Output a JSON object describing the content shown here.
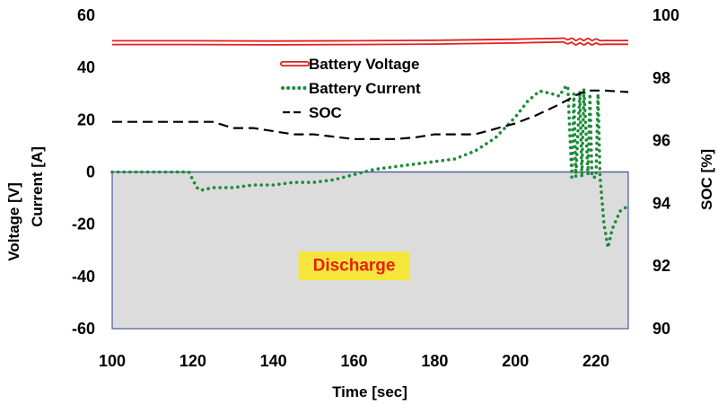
{
  "chart_data": {
    "type": "line",
    "xlabel": "Time [sec]",
    "ylabel_left": [
      "Voltage [V]",
      "Current [A]"
    ],
    "ylabel_right": "SOC [%]",
    "xlim": [
      100,
      228
    ],
    "ylim_left": [
      -60,
      60
    ],
    "ylim_right": [
      90,
      100
    ],
    "x_ticks": [
      "100",
      "120",
      "140",
      "160",
      "180",
      "200",
      "220"
    ],
    "y_left_ticks": [
      "-60",
      "-40",
      "-20",
      "0",
      "20",
      "40",
      "60"
    ],
    "y_right_ticks": [
      "90",
      "92",
      "94",
      "96",
      "98",
      "100"
    ],
    "grid": false,
    "legend_position": "top-center",
    "annotation": {
      "text": "Discharge",
      "x": 160,
      "y": -36,
      "color": "#e8200c",
      "background": "#f5e63c"
    },
    "discharge_region": {
      "y_from": 0,
      "y_to": -60,
      "color": "#dcdcdc"
    },
    "series": [
      {
        "name": "Battery Voltage",
        "axis": "left",
        "style": "double-line",
        "color": "#e02020",
        "x": [
          100,
          120,
          140,
          160,
          180,
          200,
          205,
          210,
          212,
          213,
          214,
          215,
          216,
          217,
          218,
          219,
          220,
          221,
          222,
          228
        ],
        "y": [
          49.5,
          49.5,
          49.4,
          49.5,
          49.7,
          50.1,
          50.3,
          50.4,
          50.5,
          49.8,
          50.5,
          49.4,
          50.3,
          49.4,
          50.4,
          49.4,
          50.2,
          49.5,
          49.6,
          49.6
        ]
      },
      {
        "name": "Battery Current",
        "axis": "left",
        "style": "dotted",
        "color": "#1e8c3a",
        "x": [
          100,
          105,
          110,
          115,
          119,
          120,
          121,
          122,
          125,
          130,
          135,
          140,
          145,
          150,
          155,
          160,
          165,
          170,
          175,
          180,
          185,
          190,
          195,
          200,
          203,
          206,
          209,
          211,
          212,
          213,
          214,
          214.5,
          215,
          216,
          216.5,
          217,
          218,
          218.5,
          219,
          220,
          220.5,
          221,
          222,
          223,
          224,
          226,
          228
        ],
        "y": [
          0,
          0,
          0,
          0,
          0,
          -3,
          -6,
          -7,
          -6,
          -6,
          -5,
          -5,
          -4,
          -4,
          -3,
          -1,
          1,
          2,
          3,
          4,
          5,
          8,
          13,
          21,
          27,
          31,
          30,
          29,
          32,
          33,
          -2,
          30,
          -2,
          31,
          -2,
          32,
          -1,
          30,
          -2,
          -2,
          30,
          -2,
          -20,
          -29,
          -22,
          -15,
          -13
        ]
      },
      {
        "name": "SOC",
        "axis": "right",
        "style": "dashed",
        "color": "#000000",
        "x": [
          100,
          125,
          130,
          135,
          140,
          145,
          150,
          160,
          170,
          175,
          180,
          190,
          200,
          205,
          210,
          213,
          215,
          218,
          222,
          228
        ],
        "y": [
          96.6,
          96.6,
          96.4,
          96.4,
          96.3,
          96.2,
          96.2,
          96.05,
          96.05,
          96.1,
          96.2,
          96.2,
          96.55,
          96.8,
          97.1,
          97.3,
          97.45,
          97.6,
          97.6,
          97.55
        ]
      }
    ]
  }
}
